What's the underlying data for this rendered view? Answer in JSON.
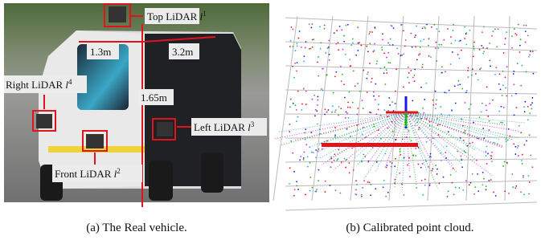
{
  "figure": {
    "panel_a": {
      "labels": {
        "top": {
          "text": "Top LiDAR",
          "symbol": "l",
          "sup": "1"
        },
        "front": {
          "text": "Front LiDAR",
          "symbol": "l",
          "sup": "2"
        },
        "left": {
          "text": "Left LiDAR",
          "symbol": "l",
          "sup": "3"
        },
        "right": {
          "text": "Right LiDAR",
          "symbol": "l",
          "sup": "4"
        }
      },
      "dimensions": {
        "width": "1.3m",
        "length": "3.2m",
        "height": "1.65m"
      },
      "caption": "(a) The Real vehicle."
    },
    "panel_b": {
      "caption": "(b) Calibrated point cloud."
    }
  }
}
